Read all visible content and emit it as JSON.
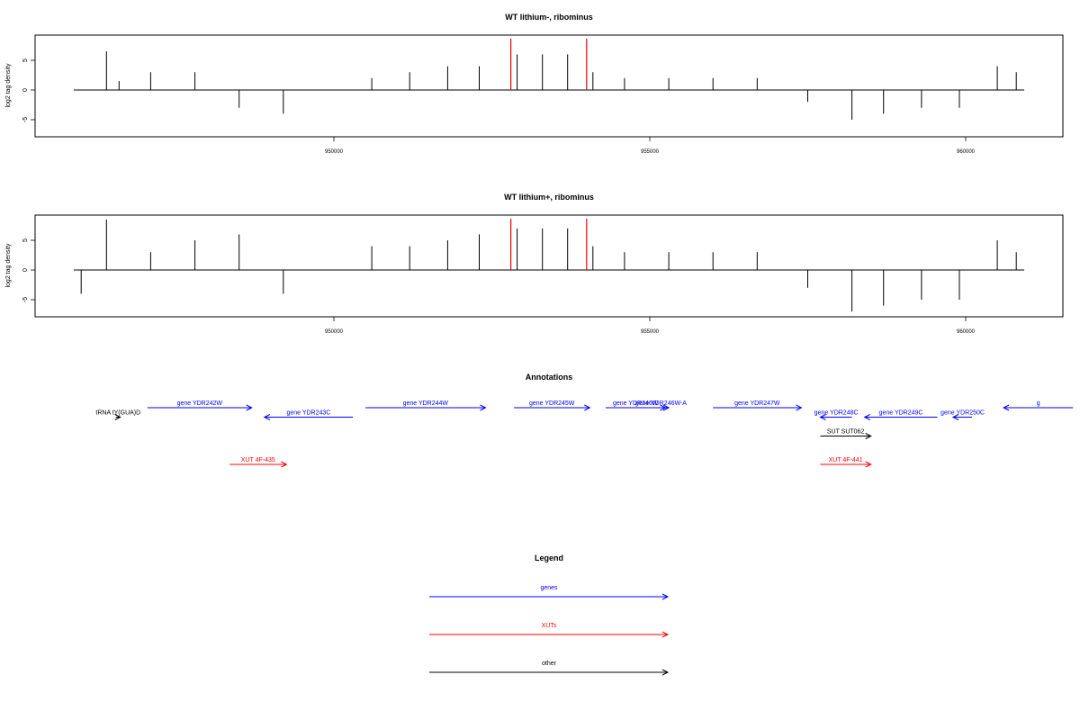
{
  "panels": [
    {
      "title": "WT lithium-, ribominus",
      "ylabel": "log2 tag density",
      "yticks": [
        "-5",
        "0",
        "5"
      ],
      "ylim": [
        -8,
        9
      ],
      "xticks": [
        "950000",
        "955000",
        "960000"
      ],
      "xtick_values": [
        950000,
        955000,
        960000
      ],
      "xlim": [
        945900,
        961600
      ],
      "highlight_positions": [
        952800,
        954000
      ],
      "highlight_color": "#ff0000"
    },
    {
      "title": "WT lithium+, ribominus",
      "ylabel": "log2 tag density",
      "yticks": [
        "-5",
        "0",
        "5"
      ],
      "ylim": [
        -8,
        9
      ],
      "xticks": [
        "950000",
        "955000",
        "960000"
      ],
      "xtick_values": [
        950000,
        955000,
        960000
      ],
      "xlim": [
        945900,
        961600
      ],
      "highlight_positions": [
        952800,
        954000
      ],
      "highlight_color": "#ff0000"
    }
  ],
  "annotations": {
    "title": "Annotations",
    "features": [
      {
        "label": "tRNA tY(GUA)D",
        "start": 946550,
        "end": 946620,
        "strand": "+",
        "color": "#000000",
        "row": 1
      },
      {
        "label": "gene YDR242W",
        "start": 947050,
        "end": 948700,
        "strand": "+",
        "color": "#0000ff",
        "row": 0
      },
      {
        "label": "gene YDR243C",
        "start": 948900,
        "end": 950300,
        "strand": "-",
        "color": "#0000ff",
        "row": 1
      },
      {
        "label": "gene YDR244W",
        "start": 950500,
        "end": 952400,
        "strand": "+",
        "color": "#0000ff",
        "row": 0
      },
      {
        "label": "gene YDR245W",
        "start": 952850,
        "end": 954050,
        "strand": "+",
        "color": "#0000ff",
        "row": 0
      },
      {
        "label": "gene YDR246W",
        "start": 954300,
        "end": 955250,
        "strand": "+",
        "color": "#0000ff",
        "row": 0
      },
      {
        "label": "gene YDR246W-A",
        "start": 955050,
        "end": 955300,
        "strand": "+",
        "color": "#0000ff",
        "row": 0
      },
      {
        "label": "gene YDR247W",
        "start": 956000,
        "end": 957400,
        "strand": "+",
        "color": "#0000ff",
        "row": 0
      },
      {
        "label": "gene YDR248C",
        "start": 957700,
        "end": 958200,
        "strand": "-",
        "color": "#0000ff",
        "row": 1
      },
      {
        "label": "gene YDR249C",
        "start": 958400,
        "end": 959550,
        "strand": "-",
        "color": "#0000ff",
        "row": 1
      },
      {
        "label": "gene YDR250C",
        "start": 959800,
        "end": 960100,
        "strand": "-",
        "color": "#0000ff",
        "row": 1
      },
      {
        "label": "g",
        "start": 960600,
        "end": 961700,
        "strand": "-",
        "color": "#0000ff",
        "row": 0
      },
      {
        "label": "SUT SUT062",
        "start": 957700,
        "end": 958500,
        "strand": "+",
        "color": "#000000",
        "row": 3
      },
      {
        "label": "XUT 4F-435",
        "start": 948350,
        "end": 949250,
        "strand": "+",
        "color": "#ff0000",
        "row": 6
      },
      {
        "label": "XUT 4F-441",
        "start": 957700,
        "end": 958500,
        "strand": "+",
        "color": "#ff0000",
        "row": 6
      }
    ]
  },
  "legend": {
    "title": "Legend",
    "items": [
      {
        "label": "genes",
        "color": "#0000ff"
      },
      {
        "label": "XUTs",
        "color": "#ff0000"
      },
      {
        "label": "other",
        "color": "#000000"
      }
    ]
  },
  "chart_data": [
    {
      "type": "bar",
      "title": "WT lithium-, ribominus",
      "xlabel": "",
      "ylabel": "log2 tag density",
      "xlim": [
        945900,
        961600
      ],
      "ylim": [
        -8,
        9
      ],
      "grid": false,
      "series": [
        {
          "x": [
            946400,
            946600,
            947100,
            947800,
            948500,
            949200,
            950600,
            951200,
            951800,
            952300,
            952900,
            953300,
            953700,
            954100,
            954600,
            955300,
            956000,
            956700,
            957500,
            958200,
            958700,
            959300,
            959900,
            960500,
            960800
          ],
          "values": [
            6.5,
            1.5,
            3,
            3,
            -3,
            -4,
            2,
            3,
            4,
            4,
            6,
            6,
            6,
            3,
            2,
            2,
            2,
            2,
            -2,
            -5,
            -4,
            -3,
            -3,
            4,
            3
          ]
        }
      ]
    },
    {
      "type": "bar",
      "title": "WT lithium+, ribominus",
      "xlabel": "",
      "ylabel": "log2 tag density",
      "xlim": [
        945900,
        961600
      ],
      "ylim": [
        -8,
        9
      ],
      "grid": false,
      "series": [
        {
          "x": [
            946000,
            946400,
            947100,
            947800,
            948500,
            949200,
            950600,
            951200,
            951800,
            952300,
            952900,
            953300,
            953700,
            954100,
            954600,
            955300,
            956000,
            956700,
            957500,
            958200,
            958700,
            959300,
            959900,
            960500,
            960800
          ],
          "values": [
            -4,
            8.5,
            3,
            5,
            6,
            -4,
            4,
            4,
            5,
            6,
            7,
            7,
            7,
            4,
            3,
            3,
            3,
            3,
            -3,
            -7,
            -6,
            -5,
            -5,
            5,
            3
          ]
        }
      ]
    }
  ]
}
